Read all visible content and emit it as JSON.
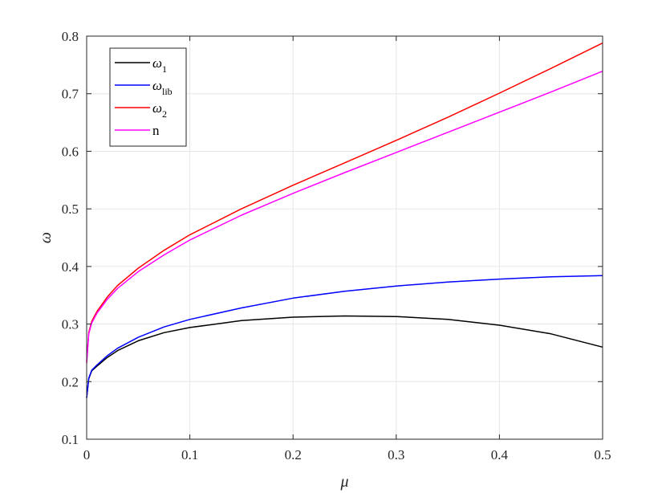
{
  "chart_data": {
    "type": "line",
    "xlabel": "μ",
    "ylabel": "ω",
    "xlim": [
      0,
      0.5
    ],
    "ylim": [
      0.1,
      0.8
    ],
    "xticks": [
      0,
      0.1,
      0.2,
      0.3,
      0.4,
      0.5
    ],
    "xtick_labels": [
      "0",
      "0.1",
      "0.2",
      "0.3",
      "0.4",
      "0.5"
    ],
    "yticks": [
      0.1,
      0.2,
      0.3,
      0.4,
      0.5,
      0.6,
      0.7,
      0.8
    ],
    "ytick_labels": [
      "0.1",
      "0.2",
      "0.3",
      "0.4",
      "0.5",
      "0.6",
      "0.7",
      "0.8"
    ],
    "grid": true,
    "legend_position": "top-left",
    "series": [
      {
        "name": "ω1",
        "symbol": "ω",
        "subscript": "1",
        "color": "#000000",
        "x": [
          0,
          0.002,
          0.005,
          0.01,
          0.02,
          0.03,
          0.05,
          0.075,
          0.1,
          0.15,
          0.2,
          0.25,
          0.3,
          0.35,
          0.4,
          0.45,
          0.5
        ],
        "y": [
          0.172,
          0.205,
          0.219,
          0.227,
          0.242,
          0.254,
          0.271,
          0.285,
          0.294,
          0.306,
          0.312,
          0.314,
          0.313,
          0.308,
          0.298,
          0.283,
          0.26
        ]
      },
      {
        "name": "ωlib",
        "symbol": "ω",
        "subscript": "lib",
        "color": "#0000ff",
        "x": [
          0,
          0.002,
          0.005,
          0.01,
          0.02,
          0.03,
          0.05,
          0.075,
          0.1,
          0.15,
          0.2,
          0.25,
          0.3,
          0.35,
          0.4,
          0.45,
          0.5
        ],
        "y": [
          0.172,
          0.206,
          0.22,
          0.229,
          0.245,
          0.258,
          0.277,
          0.295,
          0.308,
          0.328,
          0.345,
          0.357,
          0.366,
          0.373,
          0.378,
          0.382,
          0.384
        ]
      },
      {
        "name": "ω2",
        "symbol": "ω",
        "subscript": "2",
        "color": "#ff0000",
        "x": [
          0,
          0.002,
          0.005,
          0.01,
          0.02,
          0.03,
          0.05,
          0.075,
          0.1,
          0.15,
          0.2,
          0.25,
          0.3,
          0.35,
          0.4,
          0.45,
          0.5
        ],
        "y": [
          0.235,
          0.285,
          0.305,
          0.322,
          0.347,
          0.367,
          0.397,
          0.428,
          0.455,
          0.5,
          0.541,
          0.58,
          0.619,
          0.659,
          0.701,
          0.744,
          0.788
        ]
      },
      {
        "name": "n",
        "symbol": "n",
        "subscript": "",
        "color": "#ff00ff",
        "x": [
          0,
          0.002,
          0.005,
          0.01,
          0.02,
          0.03,
          0.05,
          0.075,
          0.1,
          0.15,
          0.2,
          0.25,
          0.3,
          0.35,
          0.4,
          0.45,
          0.5
        ],
        "y": [
          0.232,
          0.283,
          0.302,
          0.319,
          0.343,
          0.362,
          0.391,
          0.42,
          0.446,
          0.489,
          0.527,
          0.563,
          0.598,
          0.633,
          0.668,
          0.703,
          0.739
        ]
      }
    ]
  }
}
